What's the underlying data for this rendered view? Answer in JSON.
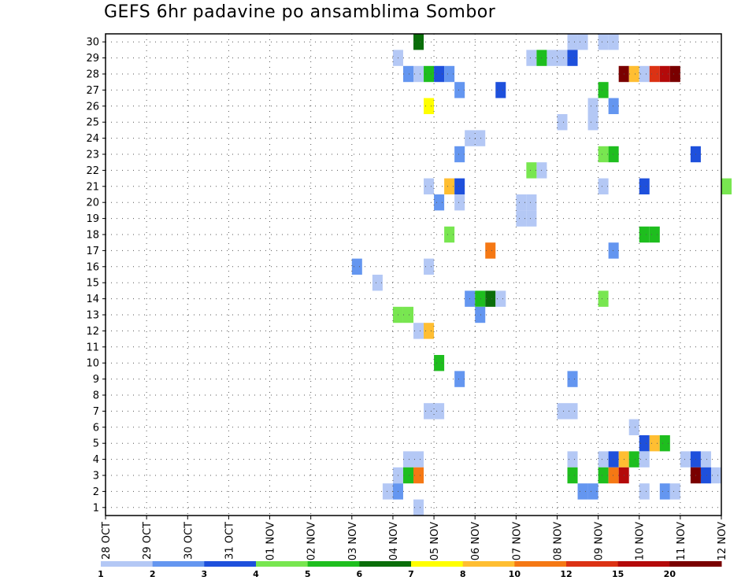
{
  "chart_data": {
    "type": "heatmap",
    "title": "GEFS 6hr padavine po ansamblima Sombor",
    "xlabel": "",
    "ylabel": "",
    "x_tick_labels": [
      "28 OCT",
      "29 OCT",
      "30 OCT",
      "31 OCT",
      "01 NOV",
      "02 NOV",
      "03 NOV",
      "04 NOV",
      "05 NOV",
      "06 NOV",
      "07 NOV",
      "08 NOV",
      "09 NOV",
      "10 NOV",
      "11 NOV",
      "12 NOV"
    ],
    "y_tick_labels": [
      "1",
      "2",
      "3",
      "4",
      "5",
      "6",
      "7",
      "8",
      "9",
      "10",
      "11",
      "12",
      "13",
      "14",
      "15",
      "16",
      "17",
      "18",
      "19",
      "20",
      "21",
      "22",
      "23",
      "24",
      "25",
      "26",
      "27",
      "28",
      "29",
      "30"
    ],
    "x_unit": "days since 28 OCT (6-hour steps)",
    "y_range": [
      0.5,
      30.5
    ],
    "grid": true,
    "legend_placement": "bottom",
    "color_levels": [
      "1",
      "2",
      "3",
      "4",
      "5",
      "6",
      "7",
      "8",
      "10",
      "12",
      "15",
      "20"
    ],
    "color_scale": [
      "#b4c8f5",
      "#6496f0",
      "#1e50dc",
      "#78e650",
      "#1ebe1e",
      "#0a6e0a",
      "#ffff00",
      "#ffbe32",
      "#f57814",
      "#dc3214",
      "#b40a0a",
      "#7a0000"
    ],
    "cells": [
      {
        "d": 7.5,
        "m": 30,
        "c": 5
      },
      {
        "d": 11.25,
        "m": 30,
        "c": 0
      },
      {
        "d": 11.5,
        "m": 30,
        "c": 0
      },
      {
        "d": 12.0,
        "m": 30,
        "c": 0
      },
      {
        "d": 12.25,
        "m": 30,
        "c": 0
      },
      {
        "d": 7.0,
        "m": 29,
        "c": 0
      },
      {
        "d": 10.25,
        "m": 29,
        "c": 0
      },
      {
        "d": 10.5,
        "m": 29,
        "c": 4
      },
      {
        "d": 10.75,
        "m": 29,
        "c": 0
      },
      {
        "d": 11.0,
        "m": 29,
        "c": 0
      },
      {
        "d": 11.25,
        "m": 29,
        "c": 2
      },
      {
        "d": 7.25,
        "m": 28,
        "c": 1
      },
      {
        "d": 7.5,
        "m": 28,
        "c": 0
      },
      {
        "d": 7.75,
        "m": 28,
        "c": 4
      },
      {
        "d": 8.0,
        "m": 28,
        "c": 2
      },
      {
        "d": 8.25,
        "m": 28,
        "c": 1
      },
      {
        "d": 12.5,
        "m": 28,
        "c": 11
      },
      {
        "d": 12.75,
        "m": 28,
        "c": 7
      },
      {
        "d": 13.0,
        "m": 28,
        "c": 0
      },
      {
        "d": 13.25,
        "m": 28,
        "c": 9
      },
      {
        "d": 13.5,
        "m": 28,
        "c": 10
      },
      {
        "d": 13.75,
        "m": 28,
        "c": 11
      },
      {
        "d": 8.5,
        "m": 27,
        "c": 1
      },
      {
        "d": 9.5,
        "m": 27,
        "c": 2
      },
      {
        "d": 12.0,
        "m": 27,
        "c": 4
      },
      {
        "d": 7.75,
        "m": 26,
        "c": 6
      },
      {
        "d": 11.75,
        "m": 26,
        "c": 0
      },
      {
        "d": 12.25,
        "m": 26,
        "c": 1
      },
      {
        "d": 11.0,
        "m": 25,
        "c": 0
      },
      {
        "d": 11.75,
        "m": 25,
        "c": 0
      },
      {
        "d": 8.75,
        "m": 24,
        "c": 0
      },
      {
        "d": 9.0,
        "m": 24,
        "c": 0
      },
      {
        "d": 8.5,
        "m": 23,
        "c": 1
      },
      {
        "d": 12.0,
        "m": 23,
        "c": 3
      },
      {
        "d": 12.25,
        "m": 23,
        "c": 4
      },
      {
        "d": 14.25,
        "m": 23,
        "c": 2
      },
      {
        "d": 10.25,
        "m": 22,
        "c": 3
      },
      {
        "d": 10.5,
        "m": 22,
        "c": 0
      },
      {
        "d": 7.75,
        "m": 21,
        "c": 0
      },
      {
        "d": 8.25,
        "m": 21,
        "c": 7
      },
      {
        "d": 8.5,
        "m": 21,
        "c": 2
      },
      {
        "d": 12.0,
        "m": 21,
        "c": 0
      },
      {
        "d": 13.0,
        "m": 21,
        "c": 2
      },
      {
        "d": 15.0,
        "m": 21,
        "c": 3
      },
      {
        "d": 8.0,
        "m": 20,
        "c": 1
      },
      {
        "d": 8.5,
        "m": 20,
        "c": 0
      },
      {
        "d": 10.0,
        "m": 20,
        "c": 0
      },
      {
        "d": 10.25,
        "m": 20,
        "c": 0
      },
      {
        "d": 10.0,
        "m": 19,
        "c": 0
      },
      {
        "d": 10.25,
        "m": 19,
        "c": 0
      },
      {
        "d": 8.25,
        "m": 18,
        "c": 3
      },
      {
        "d": 13.0,
        "m": 18,
        "c": 4
      },
      {
        "d": 13.25,
        "m": 18,
        "c": 4
      },
      {
        "d": 9.25,
        "m": 17,
        "c": 8
      },
      {
        "d": 12.25,
        "m": 17,
        "c": 1
      },
      {
        "d": 6.0,
        "m": 16,
        "c": 1
      },
      {
        "d": 7.75,
        "m": 16,
        "c": 0
      },
      {
        "d": 6.5,
        "m": 15,
        "c": 0
      },
      {
        "d": 8.75,
        "m": 14,
        "c": 1
      },
      {
        "d": 9.0,
        "m": 14,
        "c": 4
      },
      {
        "d": 9.25,
        "m": 14,
        "c": 5
      },
      {
        "d": 9.5,
        "m": 14,
        "c": 0
      },
      {
        "d": 12.0,
        "m": 14,
        "c": 3
      },
      {
        "d": 7.0,
        "m": 13,
        "c": 3
      },
      {
        "d": 7.25,
        "m": 13,
        "c": 3
      },
      {
        "d": 9.0,
        "m": 13,
        "c": 1
      },
      {
        "d": 7.5,
        "m": 12,
        "c": 0
      },
      {
        "d": 7.75,
        "m": 12,
        "c": 7
      },
      {
        "d": 8.0,
        "m": 10,
        "c": 4
      },
      {
        "d": 8.5,
        "m": 9,
        "c": 1
      },
      {
        "d": 11.25,
        "m": 9,
        "c": 1
      },
      {
        "d": 7.75,
        "m": 7,
        "c": 0
      },
      {
        "d": 8.0,
        "m": 7,
        "c": 0
      },
      {
        "d": 11.0,
        "m": 7,
        "c": 0
      },
      {
        "d": 11.25,
        "m": 7,
        "c": 0
      },
      {
        "d": 12.75,
        "m": 6,
        "c": 0
      },
      {
        "d": 13.0,
        "m": 5,
        "c": 2
      },
      {
        "d": 13.25,
        "m": 5,
        "c": 7
      },
      {
        "d": 13.5,
        "m": 5,
        "c": 4
      },
      {
        "d": 7.25,
        "m": 4,
        "c": 0
      },
      {
        "d": 7.5,
        "m": 4,
        "c": 0
      },
      {
        "d": 11.25,
        "m": 4,
        "c": 0
      },
      {
        "d": 12.0,
        "m": 4,
        "c": 0
      },
      {
        "d": 12.25,
        "m": 4,
        "c": 2
      },
      {
        "d": 12.5,
        "m": 4,
        "c": 7
      },
      {
        "d": 12.75,
        "m": 4,
        "c": 4
      },
      {
        "d": 13.0,
        "m": 4,
        "c": 0
      },
      {
        "d": 14.0,
        "m": 4,
        "c": 0
      },
      {
        "d": 14.25,
        "m": 4,
        "c": 2
      },
      {
        "d": 14.5,
        "m": 4,
        "c": 0
      },
      {
        "d": 7.0,
        "m": 3,
        "c": 0
      },
      {
        "d": 7.25,
        "m": 3,
        "c": 4
      },
      {
        "d": 7.5,
        "m": 3,
        "c": 8
      },
      {
        "d": 11.25,
        "m": 3,
        "c": 4
      },
      {
        "d": 12.0,
        "m": 3,
        "c": 4
      },
      {
        "d": 12.25,
        "m": 3,
        "c": 8
      },
      {
        "d": 12.5,
        "m": 3,
        "c": 10
      },
      {
        "d": 14.25,
        "m": 3,
        "c": 11
      },
      {
        "d": 14.5,
        "m": 3,
        "c": 2
      },
      {
        "d": 14.75,
        "m": 3,
        "c": 0
      },
      {
        "d": 6.75,
        "m": 2,
        "c": 0
      },
      {
        "d": 7.0,
        "m": 2,
        "c": 1
      },
      {
        "d": 11.5,
        "m": 2,
        "c": 1
      },
      {
        "d": 11.75,
        "m": 2,
        "c": 1
      },
      {
        "d": 13.0,
        "m": 2,
        "c": 0
      },
      {
        "d": 13.5,
        "m": 2,
        "c": 1
      },
      {
        "d": 13.75,
        "m": 2,
        "c": 0
      },
      {
        "d": 7.5,
        "m": 1,
        "c": 0
      }
    ]
  }
}
